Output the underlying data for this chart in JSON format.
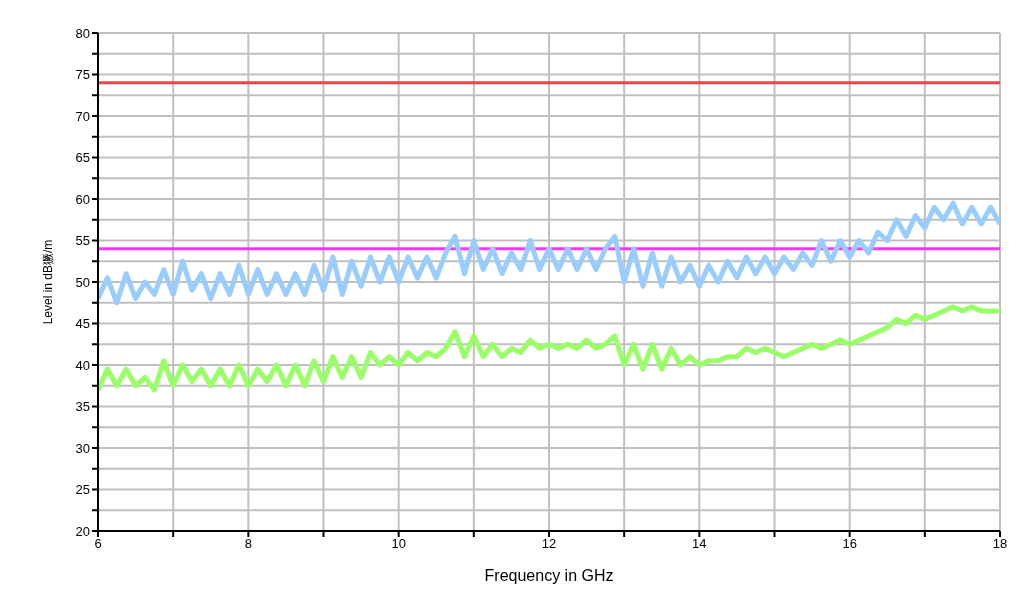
{
  "chart_data": {
    "type": "line",
    "xlabel": "Frequency in GHz",
    "ylabel": "Level in dB獗/m",
    "x": [
      6,
      6.125,
      6.25,
      6.375,
      6.5,
      6.625,
      6.75,
      6.875,
      7,
      7.125,
      7.25,
      7.375,
      7.5,
      7.625,
      7.75,
      7.875,
      8,
      8.125,
      8.25,
      8.375,
      8.5,
      8.625,
      8.75,
      8.875,
      9,
      9.125,
      9.25,
      9.375,
      9.5,
      9.625,
      9.75,
      9.875,
      10,
      10.125,
      10.25,
      10.375,
      10.5,
      10.625,
      10.75,
      10.875,
      11,
      11.125,
      11.25,
      11.375,
      11.5,
      11.625,
      11.75,
      11.875,
      12,
      12.125,
      12.25,
      12.375,
      12.5,
      12.625,
      12.75,
      12.875,
      13,
      13.125,
      13.25,
      13.375,
      13.5,
      13.625,
      13.75,
      13.875,
      14,
      14.125,
      14.25,
      14.375,
      14.5,
      14.625,
      14.75,
      14.875,
      15,
      15.125,
      15.25,
      15.375,
      15.5,
      15.625,
      15.75,
      15.875,
      16,
      16.125,
      16.25,
      16.375,
      16.5,
      16.625,
      16.75,
      16.875,
      17,
      17.125,
      17.25,
      17.375,
      17.5,
      17.625,
      17.75,
      17.875,
      18
    ],
    "series": [
      {
        "color": "#99ccff",
        "values": [
          48,
          50.5,
          47.5,
          51,
          48,
          50,
          48.5,
          51.5,
          48.5,
          52.5,
          49,
          51,
          48,
          51,
          48.5,
          52,
          48.5,
          51.5,
          48.5,
          51,
          48.5,
          51,
          48.5,
          52,
          49,
          53,
          48.5,
          52.5,
          49.5,
          53,
          50,
          53,
          50,
          53,
          50.5,
          53,
          50.5,
          53.5,
          55.5,
          51,
          55,
          51.5,
          54,
          51,
          53.5,
          51.5,
          55,
          51.5,
          54,
          51.5,
          54,
          51.5,
          54,
          51.5,
          54,
          55.5,
          50,
          54,
          49.5,
          53.5,
          49.5,
          53,
          50,
          52,
          49.5,
          52,
          50,
          52.5,
          50.5,
          53,
          51,
          53,
          51,
          53,
          51.5,
          53.5,
          52,
          55,
          52.5,
          55,
          53,
          55,
          53.5,
          56,
          55,
          57.5,
          55.5,
          58,
          56.5,
          59,
          57.5,
          59.5,
          57,
          59,
          57,
          59,
          57
        ]
      },
      {
        "color": "#99ff66",
        "values": [
          37,
          39.5,
          37.5,
          39.5,
          37.5,
          38.5,
          37,
          40.5,
          37.5,
          40,
          38,
          39.5,
          37.5,
          39.5,
          37.5,
          40,
          37.5,
          39.5,
          38,
          40,
          37.5,
          40,
          37.5,
          40.5,
          38,
          41,
          38.5,
          41,
          38.5,
          41.5,
          40,
          41,
          40,
          41.5,
          40.5,
          41.5,
          41,
          42,
          44,
          41,
          43.5,
          41,
          42.5,
          41,
          42,
          41.5,
          43,
          42,
          42.5,
          42,
          42.5,
          42,
          43,
          42,
          42.5,
          43.5,
          40,
          42.5,
          39.5,
          42.5,
          39.5,
          42,
          40,
          41,
          40,
          40.5,
          40.5,
          41,
          41,
          42,
          41.5,
          42,
          41.5,
          41,
          41.5,
          42,
          42.5,
          42,
          42.5,
          43,
          42.5,
          43,
          43.5,
          44,
          44.5,
          45.5,
          45,
          46,
          45.5,
          46,
          46.5,
          47,
          46.5,
          47,
          46.5,
          46.5,
          46.5
        ]
      }
    ],
    "xlim": [
      6,
      18
    ],
    "xticks": [
      6,
      {
        "value": 7,
        "label": null
      },
      8,
      {
        "value": 9,
        "label": null
      },
      10,
      {
        "value": 11,
        "label": null
      },
      12,
      {
        "value": 13,
        "label": null
      },
      14,
      {
        "value": 15,
        "label": null
      },
      16,
      {
        "value": 17,
        "label": null
      },
      18
    ],
    "ylim": [
      20,
      80
    ],
    "yticks": [
      20,
      {
        "value": 22.5,
        "label": null
      },
      25,
      {
        "value": 27.5,
        "label": null
      },
      30,
      {
        "value": 32.5,
        "label": null
      },
      35,
      {
        "value": 37.5,
        "label": null
      },
      40,
      {
        "value": 42.5,
        "label": null
      },
      45,
      {
        "value": 47.5,
        "label": null
      },
      50,
      {
        "value": 52.5,
        "label": null
      },
      55,
      {
        "value": 57.5,
        "label": null
      },
      60,
      {
        "value": 62.5,
        "label": null
      },
      65,
      {
        "value": 67.5,
        "label": null
      },
      70,
      {
        "value": 72.5,
        "label": null
      },
      75,
      {
        "value": 77.5,
        "label": null
      },
      80
    ],
    "ref_lines": [
      {
        "axis": "y",
        "value": 74,
        "color": "#ee4444"
      },
      {
        "axis": "y",
        "value": 54,
        "color": "#ff33ff"
      }
    ],
    "grid": true,
    "legend": false,
    "marker": "none",
    "line_style": "solid"
  }
}
